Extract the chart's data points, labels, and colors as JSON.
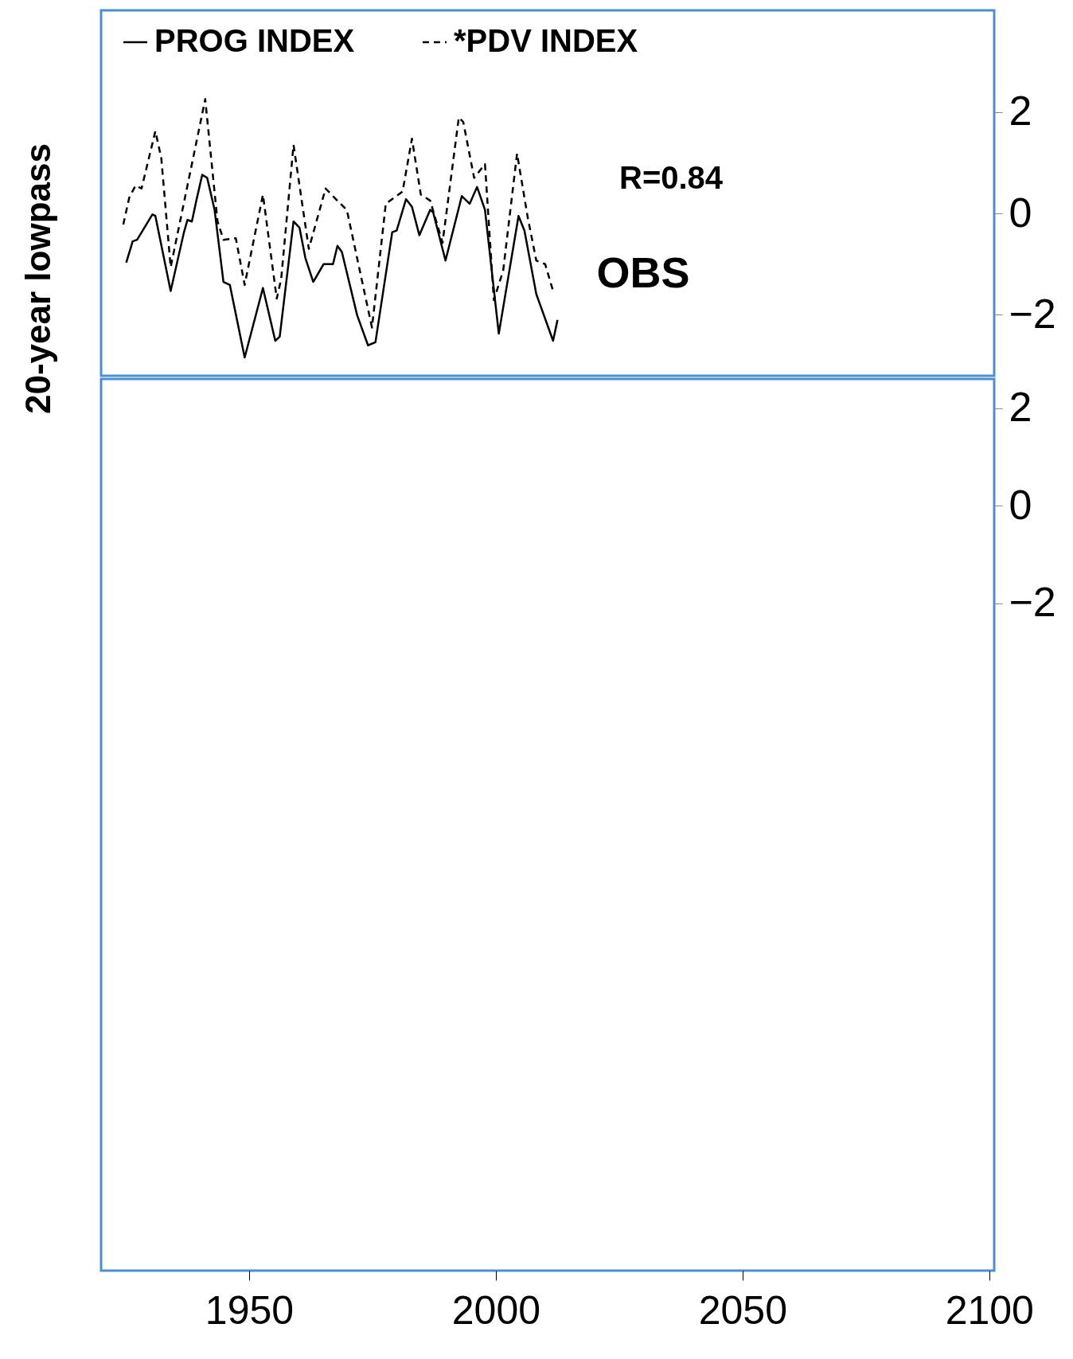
{
  "chart_data": [
    {
      "type": "line",
      "ylabel": "20-year lowpass",
      "xlim": [
        1920,
        2101
      ],
      "ylim": [
        -3.2,
        4
      ],
      "yticks": [
        2,
        0,
        -2
      ],
      "tick_labels": "y",
      "legend": "top",
      "annotations": [
        "R=0.84",
        "OBS"
      ],
      "series": [
        {
          "name": "PROG INDEX",
          "color": "#000000",
          "line_style": "solid",
          "x": [
            1925.1,
            1926.4,
            1927.3,
            1930.4,
            1931.0,
            1934.1,
            1936.8,
            1937.5,
            1938.4,
            1939.3,
            1940.5,
            1941.5,
            1943.0,
            1944.8,
            1946.1,
            1949.1,
            1952.8,
            1955.3,
            1956.2,
            1959.0,
            1960.2,
            1961.4,
            1963.0,
            1965.1,
            1967.0,
            1967.9,
            1968.8,
            1971.9,
            1974.1,
            1975.6,
            1979.0,
            1979.9,
            1981.8,
            1983.0,
            1984.5,
            1986.7,
            1987.3,
            1989.8,
            1993.1,
            1994.7,
            1996.2,
            1997.8,
            2000.6,
            2004.6,
            2005.8,
            2008.2,
            2011.6,
            2012.5
          ],
          "values": [
            -0.97,
            -0.55,
            -0.52,
            -0.02,
            -0.05,
            -1.53,
            -0.37,
            -0.13,
            -0.16,
            0.25,
            0.76,
            0.7,
            0.07,
            -1.35,
            -1.41,
            -2.84,
            -1.47,
            -2.51,
            -2.43,
            -0.16,
            -0.28,
            -0.88,
            -1.35,
            -1.0,
            -1.0,
            -0.64,
            -0.76,
            -2.01,
            -2.6,
            -2.54,
            -0.37,
            -0.34,
            0.28,
            0.13,
            -0.43,
            0.07,
            0.02,
            -0.93,
            0.34,
            0.19,
            0.52,
            0.07,
            -2.37,
            -0.05,
            -0.34,
            -1.59,
            -2.51,
            -2.1
          ]
        },
        {
          "name": "*PDV INDEX",
          "color": "#000000",
          "line_style": "dashed",
          "x": [
            1924.5,
            1925.7,
            1927.0,
            1928.2,
            1931.0,
            1932.2,
            1934.1,
            1939.9,
            1941.1,
            1943.6,
            1944.8,
            1947.3,
            1949.1,
            1952.8,
            1955.6,
            1956.5,
            1959.0,
            1962.1,
            1965.5,
            1968.2,
            1969.8,
            1974.9,
            1977.7,
            1981.1,
            1983.0,
            1984.8,
            1986.7,
            1989.2,
            1992.5,
            1993.4,
            1995.6,
            1997.8,
            1999.6,
            2001.5,
            2004.3,
            2006.5,
            2008.2,
            2010.0,
            2011.6
          ],
          "values": [
            -0.22,
            0.31,
            0.55,
            0.49,
            1.62,
            1.09,
            -1.06,
            1.68,
            2.25,
            -0.16,
            -0.52,
            -0.49,
            -1.41,
            0.37,
            -1.68,
            -1.29,
            1.35,
            -0.7,
            0.49,
            0.22,
            0.07,
            -2.25,
            0.19,
            0.43,
            1.47,
            0.37,
            0.25,
            -0.58,
            1.89,
            1.8,
            0.7,
            0.97,
            -1.71,
            -1.12,
            1.18,
            -0.1,
            -0.93,
            -1.0,
            -1.53
          ]
        }
      ]
    },
    {
      "type": "line",
      "xlim": [
        1920,
        2101
      ],
      "xticks": [
        1950,
        2000,
        2050,
        2100
      ],
      "ylim": [
        -15.7,
        2.6
      ],
      "yticks": [
        2,
        0,
        -2
      ]
    }
  ]
}
